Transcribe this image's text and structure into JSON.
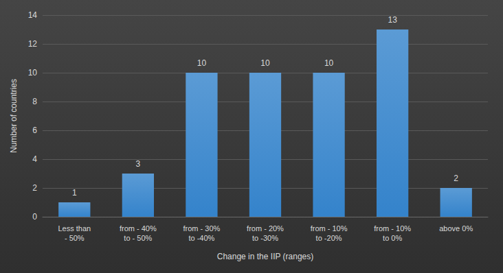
{
  "chart_data": {
    "type": "bar",
    "x_label": "Change in the IIP (ranges)",
    "y_label": "Number of countries",
    "categories": [
      "Less than\n- 50%",
      "from - 40%\nto - 50%",
      "from - 30%\nto -40%",
      "from - 20%\nto -30%",
      "from - 10%\nto -20%",
      "from - 10%\nto 0%",
      "above 0%"
    ],
    "values": [
      1,
      3,
      10,
      10,
      10,
      13,
      2
    ],
    "color": "#5b9bd5",
    "ylim": [
      0,
      14
    ],
    "yticks": [
      0,
      2,
      4,
      6,
      8,
      10,
      12,
      14
    ],
    "grid": true,
    "data_labels": true
  }
}
